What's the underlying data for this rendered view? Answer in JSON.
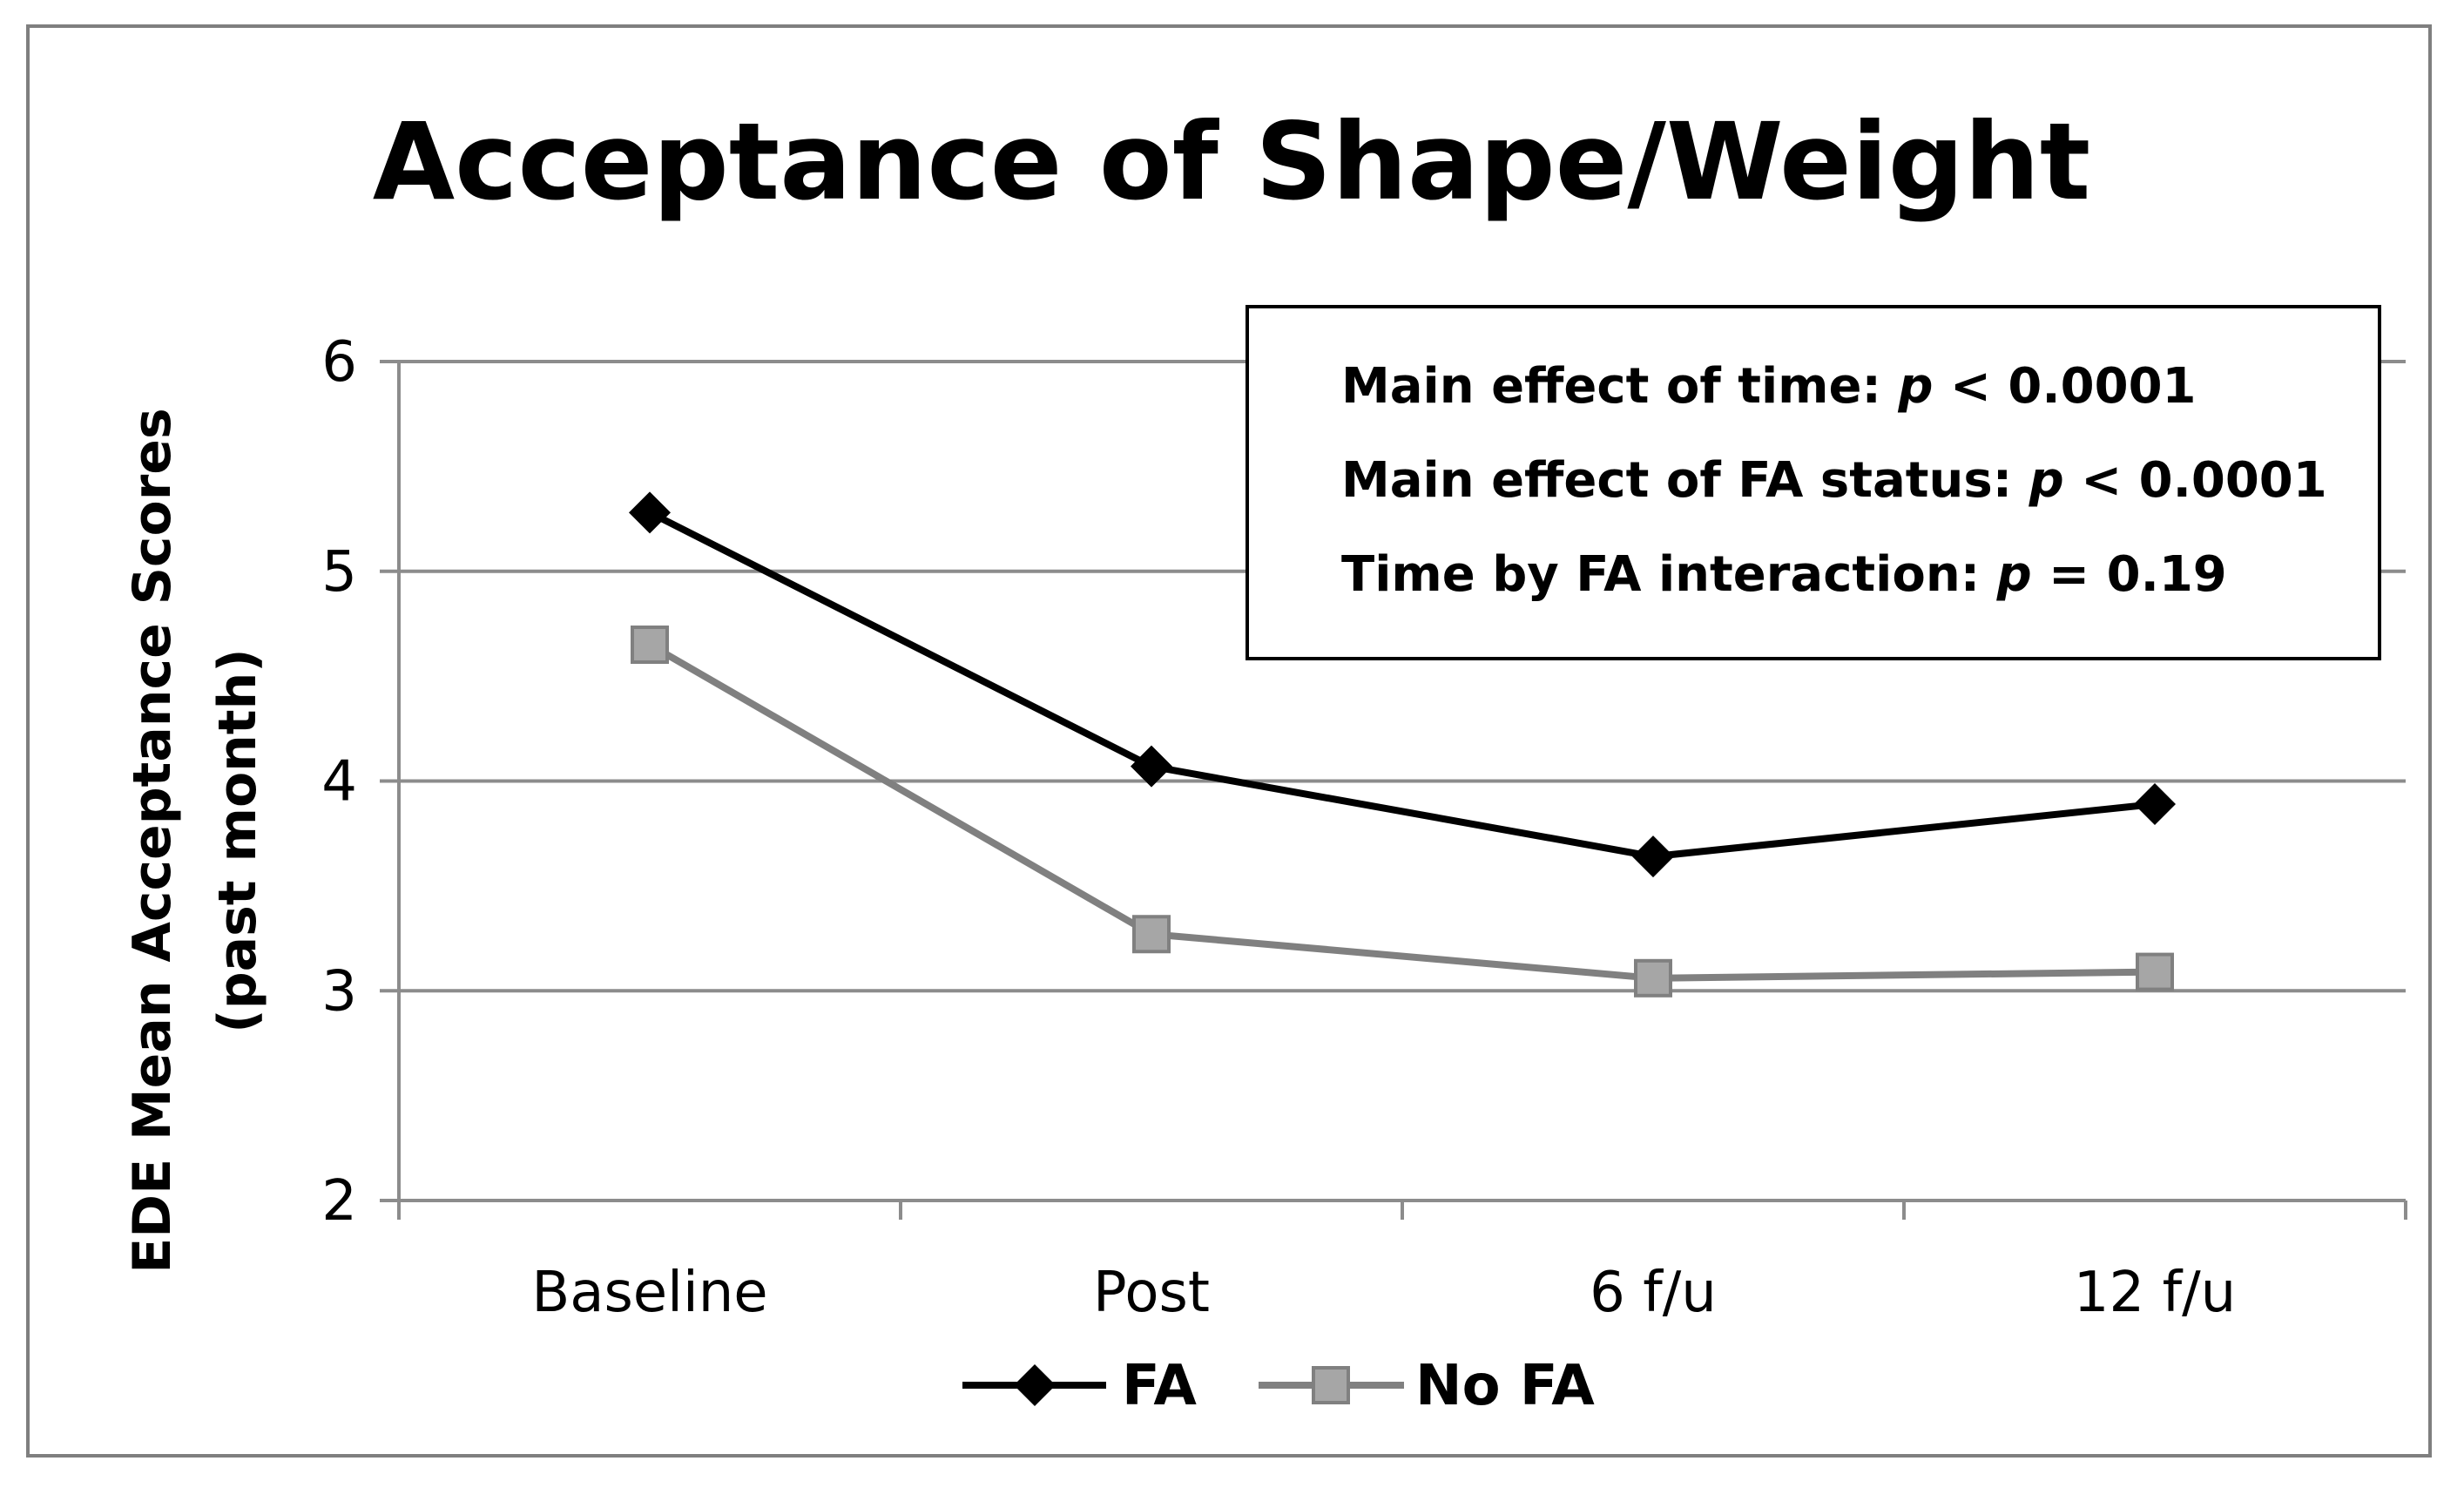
{
  "chart_data": {
    "type": "line",
    "title": "Acceptance of Shape/Weight",
    "xlabel": "",
    "ylabel": "EDE Mean Acceptance Scores",
    "ylabel_sub": "(past month)",
    "categories": [
      "Baseline",
      "Post",
      "6 f/u",
      "12 f/u"
    ],
    "ylim": [
      2,
      6
    ],
    "yticks": [
      2,
      3,
      4,
      5,
      6
    ],
    "grid": true,
    "legend_position": "bottom",
    "series": [
      {
        "name": "FA",
        "color": "#000000",
        "marker": "diamond",
        "values": [
          5.28,
          4.07,
          3.64,
          3.89
        ]
      },
      {
        "name": "No FA",
        "color": "#808080",
        "marker_fill": "#a6a6a6",
        "marker": "square",
        "values": [
          4.65,
          3.27,
          3.06,
          3.09
        ]
      }
    ],
    "annotations": [
      {
        "text": "Main effect of time: ",
        "p_symbol": "p",
        "rest": " < 0.0001"
      },
      {
        "text": "Main effect of FA status: ",
        "p_symbol": "p",
        "rest": " < 0.0001"
      },
      {
        "text": "Time by FA interaction: ",
        "p_symbol": "p",
        "rest": " = 0.19"
      }
    ]
  }
}
